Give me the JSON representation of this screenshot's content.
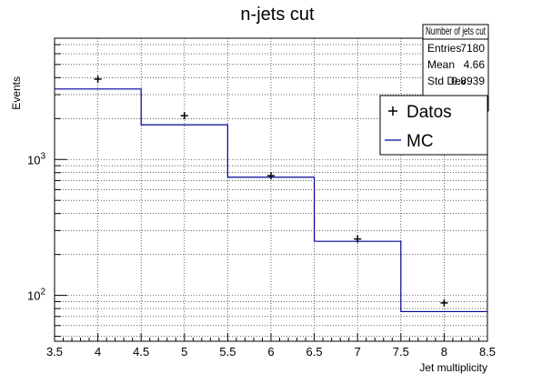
{
  "chart_data": {
    "type": "line",
    "title": "n-jets cut",
    "xlabel": "Jet multiplicity",
    "ylabel": "Events",
    "xlim": [
      3.5,
      8.5
    ],
    "ylim": [
      46,
      7800
    ],
    "ylog": true,
    "grid": true,
    "x_ticks": [
      "3.5",
      "4",
      "4.5",
      "5",
      "5.5",
      "6",
      "6.5",
      "7",
      "7.5",
      "8",
      "8.5"
    ],
    "y_ticks": [
      {
        "value": 100,
        "base": "10",
        "exp": "2"
      },
      {
        "value": 1000,
        "base": "10",
        "exp": "3"
      }
    ],
    "mc": {
      "name": "MC",
      "color": "#000099",
      "bin_edges": [
        3.5,
        4.5,
        5.5,
        6.5,
        7.5,
        8.5
      ],
      "values": [
        3300,
        1800,
        740,
        250,
        76
      ]
    },
    "data": {
      "name": "Datos",
      "color": "#000000",
      "x": [
        4,
        5,
        6,
        7,
        8
      ],
      "y": [
        3900,
        2100,
        760,
        260,
        88
      ]
    },
    "stats_box": {
      "title": "Number of jets cut",
      "rows": [
        {
          "label": "Entries",
          "value": "7180"
        },
        {
          "label": "Mean",
          "value": "4.66"
        },
        {
          "label": "Std Dev",
          "value": "0.8939"
        }
      ]
    },
    "legend": {
      "placement": "top-right",
      "entries": [
        {
          "label": "Datos",
          "kind": "marker"
        },
        {
          "label": "MC",
          "kind": "line"
        }
      ]
    }
  }
}
